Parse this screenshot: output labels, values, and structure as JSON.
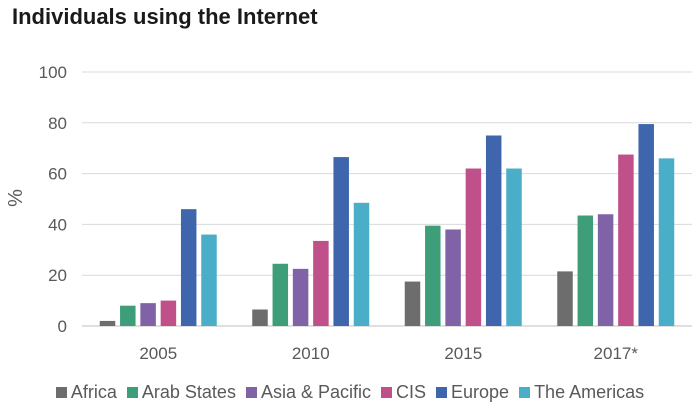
{
  "chart_data": {
    "type": "bar",
    "title": "Individuals using the Internet",
    "ylabel": "%",
    "xlabel": "",
    "ylim": [
      0,
      100
    ],
    "yticks": [
      "0",
      "20",
      "40",
      "60",
      "80",
      "100"
    ],
    "grid": true,
    "legend_position": "bottom",
    "categories": [
      "2005",
      "2010",
      "2015",
      "2017*"
    ],
    "series": [
      {
        "name": "Africa",
        "color": "#6d6d6d",
        "values": [
          2,
          6.5,
          17.5,
          21.5
        ]
      },
      {
        "name": "Arab States",
        "color": "#3e9e7a",
        "values": [
          8,
          24.5,
          39.5,
          43.5
        ]
      },
      {
        "name": "Asia & Pacific",
        "color": "#7f63a6",
        "values": [
          9,
          22.5,
          38,
          44
        ]
      },
      {
        "name": "CIS",
        "color": "#c0508a",
        "values": [
          10,
          33.5,
          62,
          67.5
        ]
      },
      {
        "name": "Europe",
        "color": "#3f65ad",
        "values": [
          46,
          66.5,
          75,
          79.5
        ]
      },
      {
        "name": "The Americas",
        "color": "#4aaec9",
        "values": [
          36,
          48.5,
          62,
          66
        ]
      }
    ]
  }
}
